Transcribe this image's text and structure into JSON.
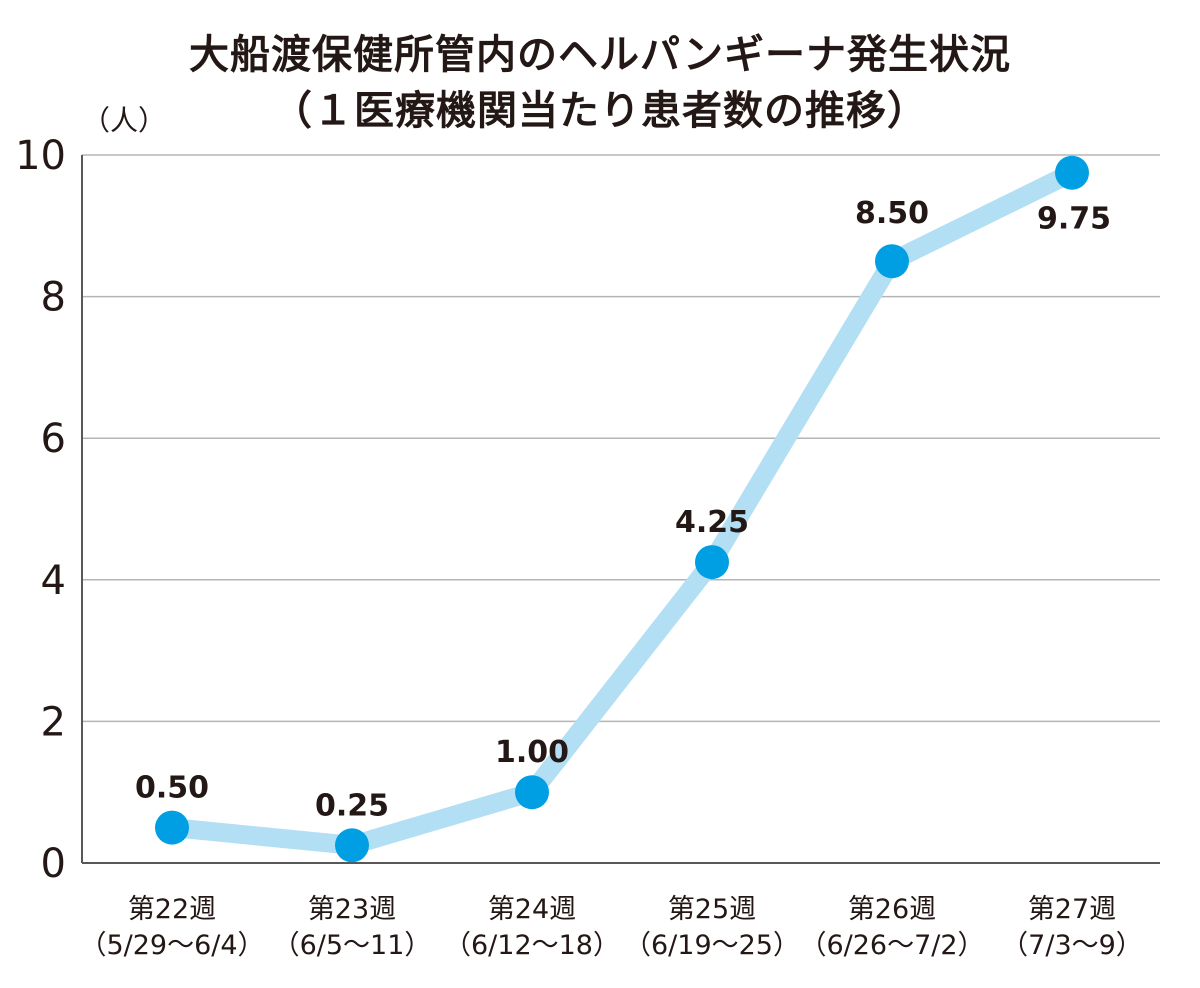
{
  "chart_data": {
    "type": "line",
    "title": "大船渡保健所管内のヘルパンギーナ発生状況",
    "subtitle": "（１医療機関当たり患者数の推移）",
    "ylabel": "（人）",
    "xlabel": "",
    "ylim": [
      0,
      10
    ],
    "yticks": [
      0,
      2,
      4,
      6,
      8,
      10
    ],
    "grid": true,
    "categories": [
      {
        "week": "第22週",
        "range": "（5/29〜6/4）"
      },
      {
        "week": "第23週",
        "range": "（6/5〜11）"
      },
      {
        "week": "第24週",
        "range": "（6/12〜18）"
      },
      {
        "week": "第25週",
        "range": "（6/19〜25）"
      },
      {
        "week": "第26週",
        "range": "（6/26〜7/2）"
      },
      {
        "week": "第27週",
        "range": "（7/3〜9）"
      }
    ],
    "values": [
      0.5,
      0.25,
      1.0,
      4.25,
      8.5,
      9.75
    ],
    "value_labels": [
      "0.50",
      "0.25",
      "1.00",
      "4.25",
      "8.50",
      "9.75"
    ],
    "colors": {
      "line": "#b3dff4",
      "marker": "#009fe3",
      "grid": "#b5b5b6",
      "axis": "#595757"
    }
  }
}
